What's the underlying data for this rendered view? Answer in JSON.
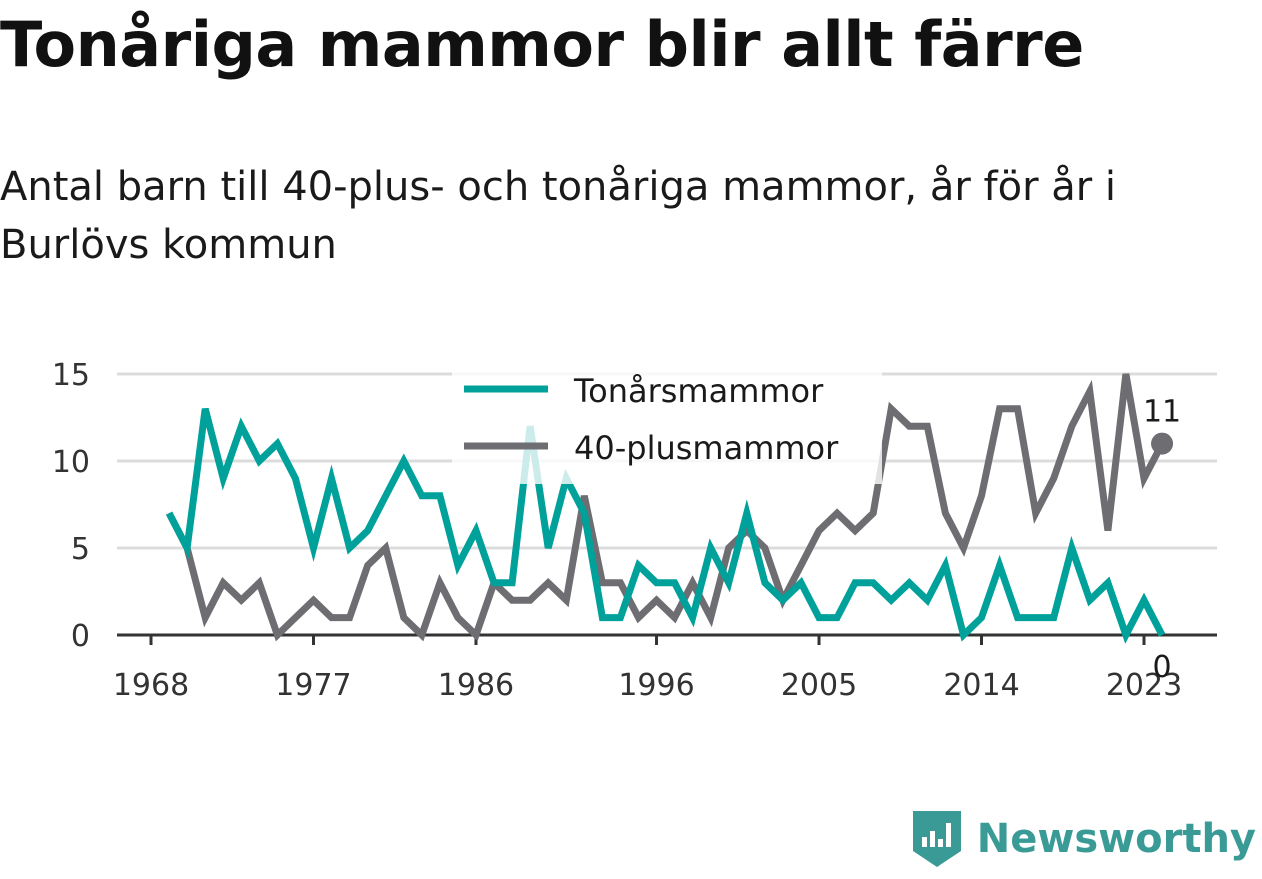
{
  "header": {
    "title": "Tonåriga mammor blir allt färre",
    "subtitle": "Antal barn till 40-plus- och tonåriga mammor, år för år i Burlövs kommun"
  },
  "brand": {
    "name": "Newsworthy",
    "icon": "newsworthy-logo-icon",
    "color": "#3a9b96"
  },
  "chart_data": {
    "type": "line",
    "x_ticks": [
      1968,
      1977,
      1986,
      1996,
      2005,
      2014,
      2023
    ],
    "y_ticks": [
      0,
      5,
      10,
      15
    ],
    "ylim": [
      0,
      15
    ],
    "xlim": [
      1967,
      2027
    ],
    "grid": true,
    "legend_position": "top-center",
    "x": [
      1969,
      1970,
      1971,
      1972,
      1973,
      1974,
      1975,
      1976,
      1977,
      1978,
      1979,
      1980,
      1981,
      1982,
      1983,
      1984,
      1985,
      1986,
      1987,
      1988,
      1989,
      1990,
      1991,
      1992,
      1993,
      1994,
      1995,
      1996,
      1997,
      1998,
      1999,
      2000,
      2001,
      2002,
      2003,
      2004,
      2005,
      2006,
      2007,
      2008,
      2009,
      2010,
      2011,
      2012,
      2013,
      2014,
      2015,
      2016,
      2017,
      2018,
      2019,
      2020,
      2021,
      2022,
      2023,
      2024
    ],
    "series": [
      {
        "name": "Tonårsmammor",
        "color": "#00a19a",
        "values": [
          7,
          5,
          13,
          9,
          12,
          10,
          11,
          9,
          5,
          9,
          5,
          6,
          8,
          10,
          8,
          8,
          4,
          6,
          3,
          3,
          12,
          5,
          9,
          7,
          1,
          1,
          4,
          3,
          3,
          1,
          5,
          3,
          7,
          3,
          2,
          3,
          1,
          1,
          3,
          3,
          2,
          3,
          2,
          4,
          0,
          1,
          4,
          1,
          1,
          1,
          5,
          2,
          3,
          0,
          2,
          0
        ],
        "end_label": "0"
      },
      {
        "name": "40-plusmammor",
        "color": "#6d6d72",
        "values": [
          7,
          5,
          1,
          3,
          2,
          3,
          0,
          1,
          2,
          1,
          1,
          4,
          5,
          1,
          0,
          3,
          1,
          0,
          3,
          2,
          2,
          3,
          2,
          8,
          3,
          3,
          1,
          2,
          1,
          3,
          1,
          5,
          6,
          5,
          2,
          4,
          6,
          7,
          6,
          7,
          13,
          12,
          12,
          7,
          5,
          8,
          13,
          13,
          7,
          9,
          12,
          14,
          6,
          15,
          9,
          11
        ],
        "end_label": "11"
      }
    ]
  }
}
